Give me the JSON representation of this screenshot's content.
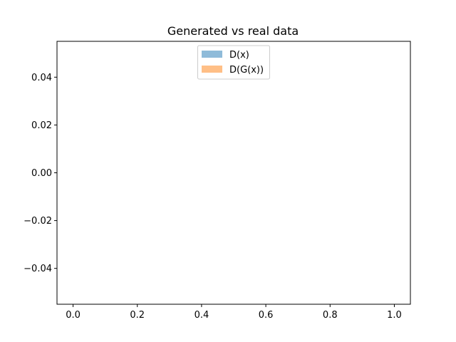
{
  "chart_data": {
    "type": "bar",
    "title": "Generated vs real data",
    "xlabel": "",
    "ylabel": "",
    "xlim": [
      -0.05,
      1.05
    ],
    "ylim": [
      -0.055,
      0.055
    ],
    "x_ticks": [
      "0.0",
      "0.2",
      "0.4",
      "0.6",
      "0.8",
      "1.0"
    ],
    "y_ticks": [
      "0.04",
      "0.02",
      "0.00",
      "−0.02",
      "−0.04"
    ],
    "grid": false,
    "legend_position": "top-center",
    "series": [
      {
        "name": "D(x)",
        "color": "#8fbbd9",
        "values": []
      },
      {
        "name": "D(G(x))",
        "color": "#ffbf86",
        "values": []
      }
    ]
  }
}
